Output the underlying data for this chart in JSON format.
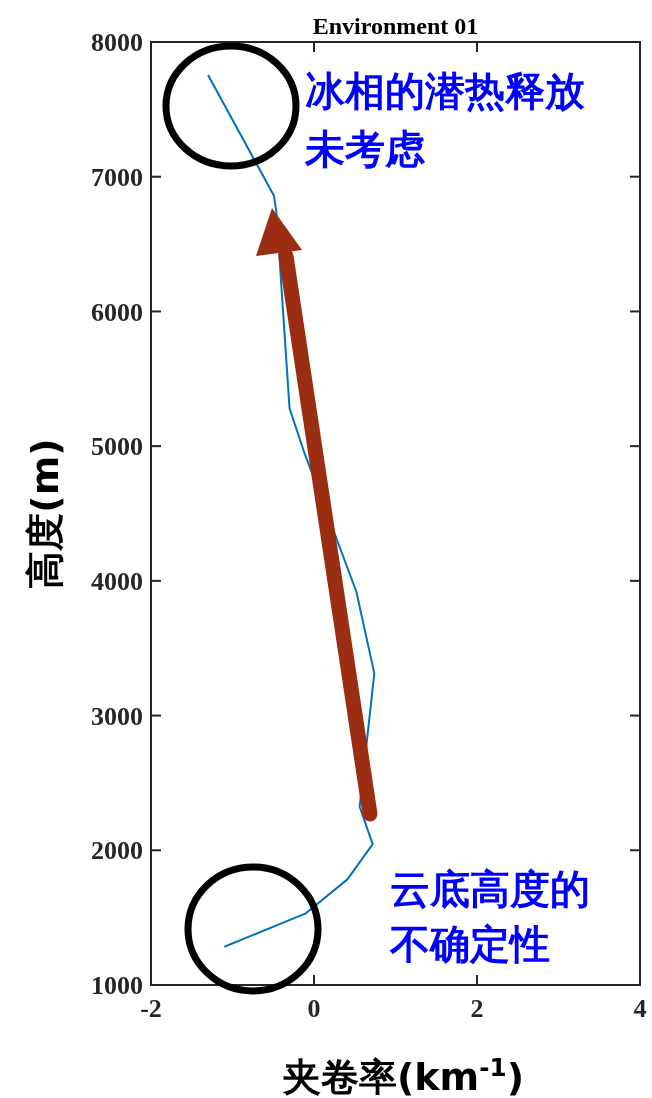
{
  "chart_data": {
    "type": "line",
    "title": "Environment 01",
    "xlabel": "夹卷率(km$^{-1}$)",
    "ylabel": "高度(m)",
    "x": [
      -1.3,
      -0.49,
      -0.46,
      -0.3,
      -0.13,
      0.52,
      0.74,
      0.56,
      0.72,
      0.41,
      -0.1,
      -1.1
    ],
    "series": [
      {
        "color": "#0072bd",
        "values": [
          7755,
          6857,
          6728,
          5280,
          4971,
          3919,
          3313,
          2323,
          2046,
          1784,
          1532,
          1284
        ]
      }
    ],
    "xlim": [
      -2,
      4
    ],
    "xticks": [
      -2,
      0,
      2,
      4
    ],
    "ylim": [
      1000,
      8000
    ],
    "yticks": [
      1000,
      2000,
      3000,
      4000,
      5000,
      6000,
      7000,
      8000
    ],
    "grid": false,
    "line_style": "solid",
    "marker": "none",
    "annotations": [
      "冰相的潜热释放未考虑",
      "云底高度的不确定性"
    ]
  }
}
